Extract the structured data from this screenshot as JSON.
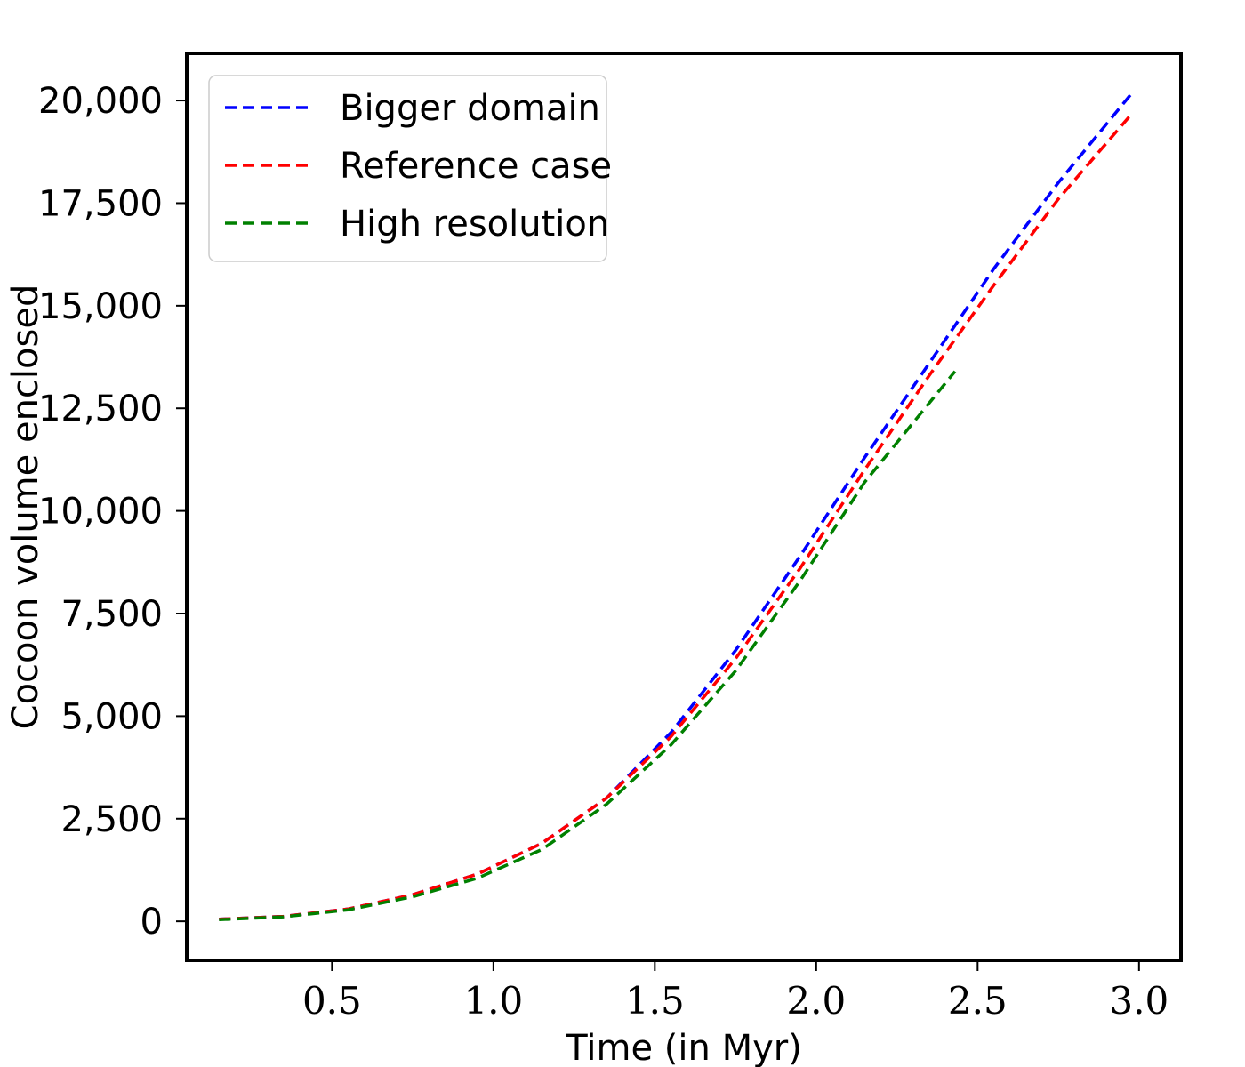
{
  "chart_data": {
    "type": "line",
    "title": "",
    "xlabel": "Time (in Myr)",
    "ylabel": "Cocoon volume enclosed",
    "xlim": [
      0.05,
      3.13
    ],
    "ylim": [
      -950,
      21150
    ],
    "xticks": [
      0.5,
      1.0,
      1.5,
      2.0,
      2.5,
      3.0
    ],
    "xtick_labels": [
      "0.5",
      "1.0",
      "1.5",
      "2.0",
      "2.5",
      "3.0"
    ],
    "yticks": [
      0,
      2500,
      5000,
      7500,
      10000,
      12500,
      15000,
      17500,
      20000
    ],
    "ytick_labels": [
      "0",
      "2,500",
      "5,000",
      "7,500",
      "10,000",
      "12,500",
      "15,000",
      "17,500",
      "20,000"
    ],
    "grid": false,
    "legend_position": "top-left",
    "series": [
      {
        "name": "Bigger domain",
        "color": "#0000ff",
        "x": [
          0.15,
          0.35,
          0.55,
          0.75,
          0.95,
          1.15,
          1.35,
          1.55,
          1.75,
          1.95,
          2.15,
          2.35,
          2.55,
          2.75,
          2.98
        ],
        "y": [
          50,
          120,
          300,
          650,
          1150,
          1900,
          3000,
          4600,
          6600,
          8900,
          11300,
          13600,
          15900,
          18000,
          20200
        ]
      },
      {
        "name": "Reference case",
        "color": "#ff0000",
        "x": [
          0.15,
          0.35,
          0.55,
          0.75,
          0.95,
          1.15,
          1.35,
          1.55,
          1.75,
          1.95,
          2.15,
          2.35,
          2.55,
          2.75,
          2.98
        ],
        "y": [
          50,
          120,
          300,
          650,
          1150,
          1900,
          3000,
          4500,
          6400,
          8600,
          11000,
          13300,
          15500,
          17600,
          19700
        ]
      },
      {
        "name": "High resolution",
        "color": "#008000",
        "x": [
          0.15,
          0.35,
          0.55,
          0.75,
          0.95,
          1.15,
          1.35,
          1.55,
          1.75,
          1.95,
          2.15,
          2.43
        ],
        "y": [
          40,
          110,
          280,
          600,
          1050,
          1750,
          2850,
          4300,
          6100,
          8300,
          10700,
          13400
        ]
      }
    ]
  }
}
